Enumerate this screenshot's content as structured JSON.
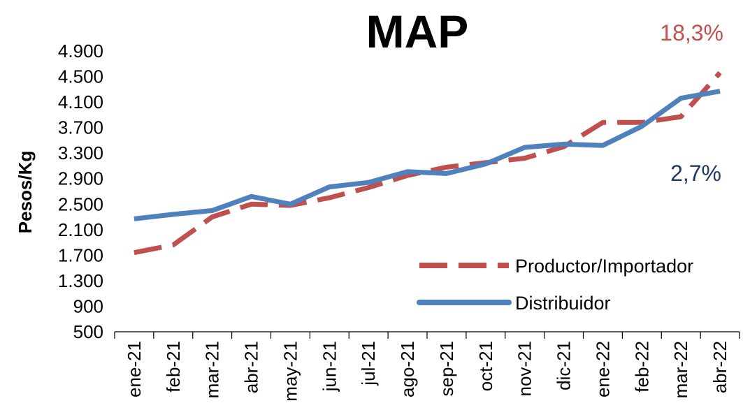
{
  "chart_data": {
    "type": "line",
    "title": "MAP",
    "ylabel": "Pesos/Kg",
    "xlabel": "",
    "ylim": [
      500,
      4900
    ],
    "yticks": [
      "4.900",
      "4.500",
      "4.100",
      "3.700",
      "3.300",
      "2.900",
      "2.500",
      "2.100",
      "1.700",
      "1.300",
      "900",
      "500"
    ],
    "ytick_values": [
      4900,
      4500,
      4100,
      3700,
      3300,
      2900,
      2500,
      2100,
      1700,
      1300,
      900,
      500
    ],
    "categories": [
      "ene-21",
      "feb-21",
      "mar-21",
      "abr-21",
      "may-21",
      "jun-21",
      "jul-21",
      "ago-21",
      "sep-21",
      "oct-21",
      "nov-21",
      "dic-21",
      "ene-22",
      "feb-22",
      "mar-22",
      "abr-22"
    ],
    "series": [
      {
        "name": "Productor/Importador",
        "color": "#c0504d",
        "dash": true,
        "values": [
          1740,
          1860,
          2300,
          2500,
          2480,
          2600,
          2760,
          2950,
          3080,
          3150,
          3220,
          3400,
          3780,
          3780,
          3870,
          4560
        ]
      },
      {
        "name": "Distribuidor",
        "color": "#4f81bd",
        "dash": false,
        "values": [
          2270,
          2340,
          2400,
          2620,
          2500,
          2770,
          2840,
          3010,
          2980,
          3130,
          3390,
          3440,
          3420,
          3720,
          4160,
          4270
        ]
      }
    ],
    "annotations": [
      {
        "text": "18,3%",
        "color": "#c0504d"
      },
      {
        "text": "2,7%",
        "color": "#1f3864"
      }
    ],
    "legend_position": "lower-right",
    "grid": false
  }
}
